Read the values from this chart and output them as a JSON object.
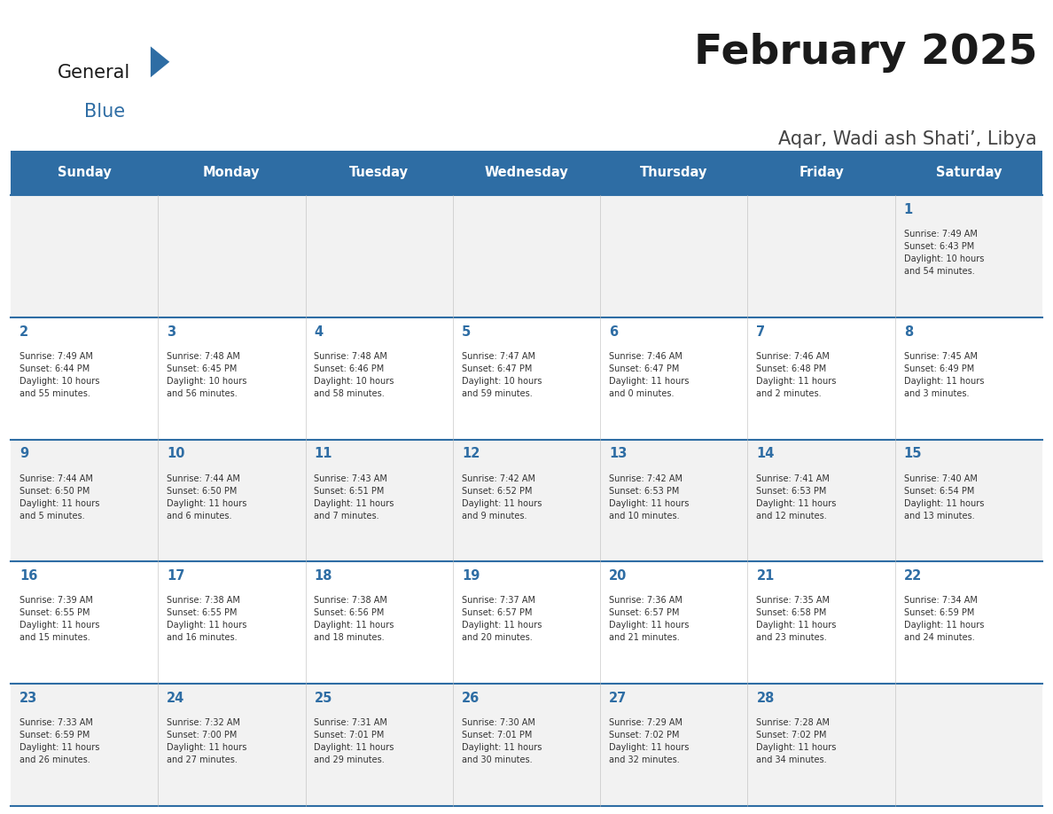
{
  "title": "February 2025",
  "subtitle": "Aqar, Wadi ash Shati’, Libya",
  "header_bg": "#2E6DA4",
  "header_text_color": "#FFFFFF",
  "cell_bg_odd": "#F2F2F2",
  "cell_bg_even": "#FFFFFF",
  "day_number_color": "#2E6DA4",
  "cell_text_color": "#333333",
  "title_color": "#1a1a1a",
  "subtitle_color": "#444444",
  "grid_line_color": "#2E6DA4",
  "logo_color_dark": "#1a1a1a",
  "logo_color_blue": "#2E6DA4",
  "days_of_week": [
    "Sunday",
    "Monday",
    "Tuesday",
    "Wednesday",
    "Thursday",
    "Friday",
    "Saturday"
  ],
  "weeks": [
    [
      {
        "day": 0,
        "text": ""
      },
      {
        "day": 0,
        "text": ""
      },
      {
        "day": 0,
        "text": ""
      },
      {
        "day": 0,
        "text": ""
      },
      {
        "day": 0,
        "text": ""
      },
      {
        "day": 0,
        "text": ""
      },
      {
        "day": 1,
        "text": "Sunrise: 7:49 AM\nSunset: 6:43 PM\nDaylight: 10 hours\nand 54 minutes."
      }
    ],
    [
      {
        "day": 2,
        "text": "Sunrise: 7:49 AM\nSunset: 6:44 PM\nDaylight: 10 hours\nand 55 minutes."
      },
      {
        "day": 3,
        "text": "Sunrise: 7:48 AM\nSunset: 6:45 PM\nDaylight: 10 hours\nand 56 minutes."
      },
      {
        "day": 4,
        "text": "Sunrise: 7:48 AM\nSunset: 6:46 PM\nDaylight: 10 hours\nand 58 minutes."
      },
      {
        "day": 5,
        "text": "Sunrise: 7:47 AM\nSunset: 6:47 PM\nDaylight: 10 hours\nand 59 minutes."
      },
      {
        "day": 6,
        "text": "Sunrise: 7:46 AM\nSunset: 6:47 PM\nDaylight: 11 hours\nand 0 minutes."
      },
      {
        "day": 7,
        "text": "Sunrise: 7:46 AM\nSunset: 6:48 PM\nDaylight: 11 hours\nand 2 minutes."
      },
      {
        "day": 8,
        "text": "Sunrise: 7:45 AM\nSunset: 6:49 PM\nDaylight: 11 hours\nand 3 minutes."
      }
    ],
    [
      {
        "day": 9,
        "text": "Sunrise: 7:44 AM\nSunset: 6:50 PM\nDaylight: 11 hours\nand 5 minutes."
      },
      {
        "day": 10,
        "text": "Sunrise: 7:44 AM\nSunset: 6:50 PM\nDaylight: 11 hours\nand 6 minutes."
      },
      {
        "day": 11,
        "text": "Sunrise: 7:43 AM\nSunset: 6:51 PM\nDaylight: 11 hours\nand 7 minutes."
      },
      {
        "day": 12,
        "text": "Sunrise: 7:42 AM\nSunset: 6:52 PM\nDaylight: 11 hours\nand 9 minutes."
      },
      {
        "day": 13,
        "text": "Sunrise: 7:42 AM\nSunset: 6:53 PM\nDaylight: 11 hours\nand 10 minutes."
      },
      {
        "day": 14,
        "text": "Sunrise: 7:41 AM\nSunset: 6:53 PM\nDaylight: 11 hours\nand 12 minutes."
      },
      {
        "day": 15,
        "text": "Sunrise: 7:40 AM\nSunset: 6:54 PM\nDaylight: 11 hours\nand 13 minutes."
      }
    ],
    [
      {
        "day": 16,
        "text": "Sunrise: 7:39 AM\nSunset: 6:55 PM\nDaylight: 11 hours\nand 15 minutes."
      },
      {
        "day": 17,
        "text": "Sunrise: 7:38 AM\nSunset: 6:55 PM\nDaylight: 11 hours\nand 16 minutes."
      },
      {
        "day": 18,
        "text": "Sunrise: 7:38 AM\nSunset: 6:56 PM\nDaylight: 11 hours\nand 18 minutes."
      },
      {
        "day": 19,
        "text": "Sunrise: 7:37 AM\nSunset: 6:57 PM\nDaylight: 11 hours\nand 20 minutes."
      },
      {
        "day": 20,
        "text": "Sunrise: 7:36 AM\nSunset: 6:57 PM\nDaylight: 11 hours\nand 21 minutes."
      },
      {
        "day": 21,
        "text": "Sunrise: 7:35 AM\nSunset: 6:58 PM\nDaylight: 11 hours\nand 23 minutes."
      },
      {
        "day": 22,
        "text": "Sunrise: 7:34 AM\nSunset: 6:59 PM\nDaylight: 11 hours\nand 24 minutes."
      }
    ],
    [
      {
        "day": 23,
        "text": "Sunrise: 7:33 AM\nSunset: 6:59 PM\nDaylight: 11 hours\nand 26 minutes."
      },
      {
        "day": 24,
        "text": "Sunrise: 7:32 AM\nSunset: 7:00 PM\nDaylight: 11 hours\nand 27 minutes."
      },
      {
        "day": 25,
        "text": "Sunrise: 7:31 AM\nSunset: 7:01 PM\nDaylight: 11 hours\nand 29 minutes."
      },
      {
        "day": 26,
        "text": "Sunrise: 7:30 AM\nSunset: 7:01 PM\nDaylight: 11 hours\nand 30 minutes."
      },
      {
        "day": 27,
        "text": "Sunrise: 7:29 AM\nSunset: 7:02 PM\nDaylight: 11 hours\nand 32 minutes."
      },
      {
        "day": 28,
        "text": "Sunrise: 7:28 AM\nSunset: 7:02 PM\nDaylight: 11 hours\nand 34 minutes."
      },
      {
        "day": 0,
        "text": ""
      }
    ]
  ],
  "fig_width": 11.88,
  "fig_height": 9.18
}
